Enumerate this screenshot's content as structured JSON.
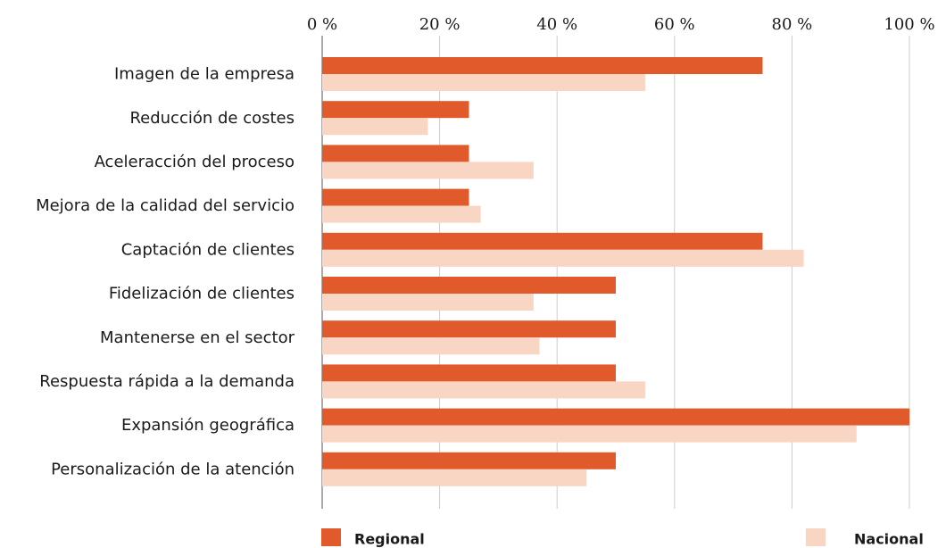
{
  "chart_data": {
    "type": "hbar",
    "categories": [
      "Imagen de la empresa",
      "Reducción de costes",
      "Aceleracción del proceso",
      "Mejora de la calidad del servicio",
      "Captación de clientes",
      "Fidelización de clientes",
      "Mantenerse en el sector",
      "Respuesta rápida a la demanda",
      "Expansión geográfica",
      "Personalización de la atención"
    ],
    "series": [
      {
        "name": "Regional",
        "color": "#e05a2b",
        "values": [
          75,
          25,
          25,
          25,
          75,
          50,
          50,
          50,
          100,
          50
        ]
      },
      {
        "name": "Nacional",
        "color": "#f9d5c3",
        "values": [
          55,
          18,
          36,
          27,
          82,
          36,
          37,
          55,
          91,
          45
        ]
      }
    ],
    "xlim": [
      0,
      100
    ],
    "xticks": [
      {
        "value": 0,
        "label": "0 %"
      },
      {
        "value": 20,
        "label": "20 %"
      },
      {
        "value": 40,
        "label": "40 %"
      },
      {
        "value": 60,
        "label": "60 %"
      },
      {
        "value": 80,
        "label": "80 %"
      },
      {
        "value": 100,
        "label": "100 %"
      }
    ],
    "grid": true,
    "legend": "bottom"
  }
}
